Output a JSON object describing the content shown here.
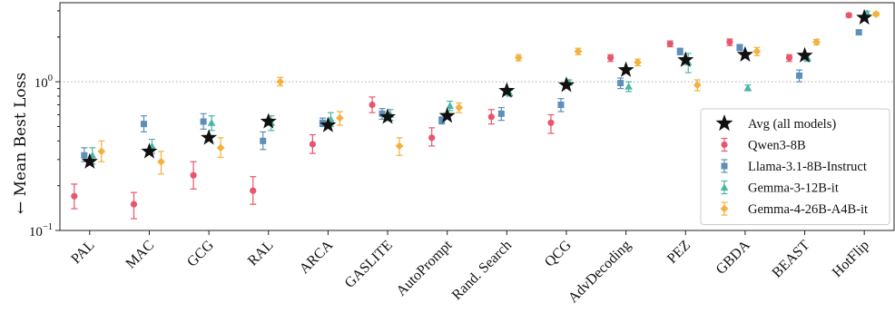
{
  "chart_data": {
    "type": "scatter",
    "title": "",
    "ylabel": "← Mean Best Loss",
    "xlabel": "",
    "y_scale": "log",
    "ylim": [
      0.1,
      3.4
    ],
    "y_ticks": [
      {
        "value": 0.1,
        "base": "10",
        "exp": "−1"
      },
      {
        "value": 1,
        "base": "10",
        "exp": "0"
      }
    ],
    "reference_line": {
      "y": 1.0,
      "style": "dotted"
    },
    "legend_position": "lower-right",
    "categories": [
      "PAL",
      "MAC",
      "GCG",
      "RAL",
      "ARCA",
      "GASLITE",
      "AutoPrompt",
      "Rand. Search",
      "QCG",
      "AdvDecoding",
      "PEZ",
      "GBDA",
      "BEAST",
      "HotFlip"
    ],
    "series": [
      {
        "name": "Qwen3-8B",
        "marker": "circle",
        "color": "#e8566c",
        "values": [
          0.17,
          0.15,
          0.235,
          0.185,
          0.38,
          0.7,
          0.42,
          0.58,
          0.53,
          1.45,
          1.8,
          1.85,
          1.45,
          2.8
        ],
        "err_low": [
          0.14,
          0.12,
          0.19,
          0.15,
          0.33,
          0.62,
          0.37,
          0.52,
          0.45,
          1.37,
          1.72,
          1.75,
          1.37,
          2.72
        ],
        "err_high": [
          0.205,
          0.18,
          0.29,
          0.23,
          0.44,
          0.79,
          0.49,
          0.65,
          0.6,
          1.52,
          1.88,
          1.94,
          1.52,
          2.88
        ]
      },
      {
        "name": "Llama-3.1-8B-Instruct",
        "marker": "square",
        "color": "#5d8fb8",
        "values": [
          0.32,
          0.52,
          0.54,
          0.4,
          0.53,
          0.61,
          0.55,
          0.61,
          0.7,
          0.98,
          1.6,
          1.7,
          1.1,
          2.15
        ],
        "err_low": [
          0.29,
          0.46,
          0.48,
          0.35,
          0.5,
          0.56,
          0.52,
          0.55,
          0.63,
          0.9,
          1.52,
          1.62,
          1.0,
          2.07
        ],
        "err_high": [
          0.36,
          0.59,
          0.61,
          0.46,
          0.57,
          0.66,
          0.58,
          0.67,
          0.77,
          1.06,
          1.68,
          1.78,
          1.2,
          2.23
        ]
      },
      {
        "name": "Gemma-3-12B-it",
        "marker": "triangle",
        "color": "#4cb5a6",
        "values": [
          0.32,
          0.37,
          0.53,
          0.53,
          0.56,
          0.6,
          0.69,
          0.84,
          0.99,
          0.93,
          1.35,
          0.91,
          1.45,
          2.9
        ],
        "err_low": [
          0.28,
          0.33,
          0.47,
          0.47,
          0.5,
          0.55,
          0.64,
          0.8,
          0.95,
          0.86,
          1.15,
          0.87,
          1.37,
          2.82
        ],
        "err_high": [
          0.36,
          0.41,
          0.59,
          0.59,
          0.62,
          0.65,
          0.74,
          0.88,
          1.03,
          1.0,
          1.55,
          0.95,
          1.53,
          2.98
        ]
      },
      {
        "name": "Gemma-4-26B-A4B-it",
        "marker": "diamond",
        "color": "#f3b23d",
        "values": [
          0.34,
          0.29,
          0.36,
          1.0,
          0.57,
          0.37,
          0.67,
          1.45,
          1.6,
          1.35,
          0.95,
          1.6,
          1.85,
          2.85
        ],
        "err_low": [
          0.29,
          0.24,
          0.31,
          0.94,
          0.51,
          0.32,
          0.62,
          1.38,
          1.52,
          1.28,
          0.87,
          1.5,
          1.77,
          2.77
        ],
        "err_high": [
          0.4,
          0.34,
          0.42,
          1.07,
          0.63,
          0.42,
          0.72,
          1.52,
          1.68,
          1.42,
          1.03,
          1.7,
          1.93,
          2.93
        ]
      },
      {
        "name": "Avg (all models)",
        "marker": "star",
        "color": "#111111",
        "values": [
          0.29,
          0.34,
          0.42,
          0.54,
          0.51,
          0.58,
          0.59,
          0.87,
          0.95,
          1.2,
          1.4,
          1.52,
          1.5,
          2.7
        ]
      }
    ]
  }
}
